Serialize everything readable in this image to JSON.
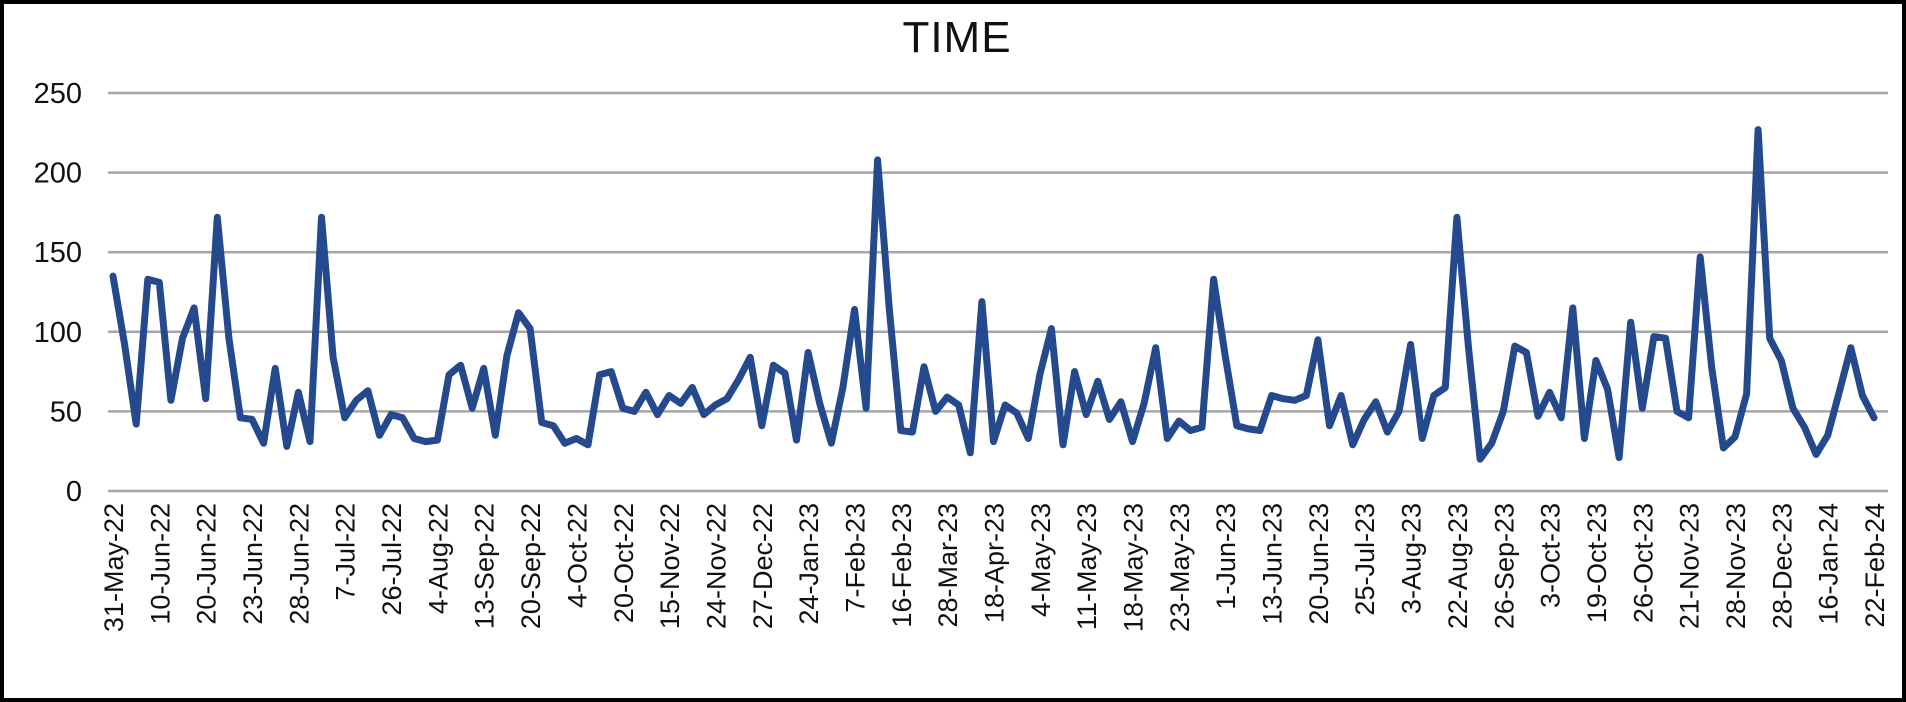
{
  "chart_data": {
    "type": "line",
    "title": "TIME",
    "legend": "none",
    "grid": "horizontal",
    "series_color": "#24498c",
    "gridline_color": "#a6a6a6",
    "text_color": "#111111",
    "ylim": [
      0,
      250
    ],
    "yticks": [
      0,
      50,
      100,
      150,
      200,
      250
    ],
    "x_label_interval": 4,
    "x_tick_labels": [
      "31-May-22",
      "10-Jun-22",
      "20-Jun-22",
      "23-Jun-22",
      "28-Jun-22",
      "7-Jul-22",
      "26-Jul-22",
      "4-Aug-22",
      "13-Sep-22",
      "20-Sep-22",
      "4-Oct-22",
      "20-Oct-22",
      "15-Nov-22",
      "24-Nov-22",
      "27-Dec-22",
      "24-Jan-23",
      "7-Feb-23",
      "16-Feb-23",
      "28-Mar-23",
      "18-Apr-23",
      "4-May-23",
      "11-May-23",
      "18-May-23",
      "23-May-23",
      "1-Jun-23",
      "13-Jun-23",
      "20-Jun-23",
      "25-Jul-23",
      "3-Aug-23",
      "22-Aug-23",
      "26-Sep-23",
      "3-Oct-23",
      "19-Oct-23",
      "26-Oct-23",
      "21-Nov-23",
      "28-Nov-23",
      "28-Dec-23",
      "16-Jan-24",
      "22-Feb-24"
    ],
    "values": [
      135,
      92,
      42,
      133,
      131,
      57,
      96,
      115,
      58,
      172,
      96,
      46,
      45,
      30,
      77,
      28,
      62,
      31,
      172,
      84,
      46,
      57,
      63,
      35,
      48,
      46,
      33,
      31,
      32,
      73,
      79,
      52,
      77,
      35,
      85,
      112,
      102,
      43,
      41,
      30,
      33,
      29,
      73,
      75,
      52,
      50,
      62,
      48,
      60,
      55,
      65,
      48,
      54,
      58,
      70,
      84,
      41,
      79,
      74,
      32,
      87,
      55,
      30,
      65,
      114,
      52,
      208,
      115,
      38,
      37,
      78,
      50,
      59,
      54,
      24,
      119,
      31,
      54,
      49,
      33,
      73,
      102,
      29,
      75,
      48,
      69,
      45,
      56,
      31,
      55,
      90,
      33,
      44,
      38,
      40,
      133,
      85,
      41,
      39,
      38,
      60,
      58,
      57,
      60,
      95,
      41,
      60,
      29,
      45,
      56,
      37,
      50,
      92,
      33,
      60,
      65,
      172,
      90,
      20,
      30,
      50,
      91,
      87,
      47,
      62,
      46,
      115,
      33,
      82,
      64,
      21,
      106,
      52,
      97,
      96,
      50,
      46,
      147,
      77,
      27,
      34,
      61,
      227,
      96,
      82,
      52,
      40,
      23,
      35,
      62,
      90,
      60,
      46
    ]
  }
}
